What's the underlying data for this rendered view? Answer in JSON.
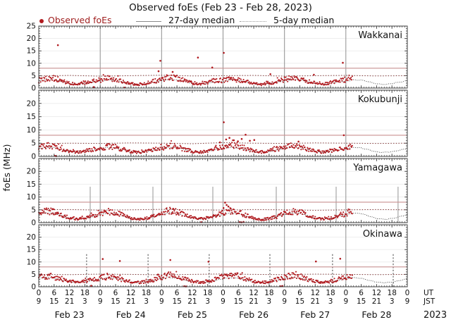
{
  "title": "Observed foEs (Feb 23 - Feb 28, 2023)",
  "legend": {
    "observed": "Observed foEs",
    "median27": "27-day median",
    "median5": "5-day median"
  },
  "colors": {
    "observed": "#b11a1f",
    "observed_text": "#a02020",
    "median27": "#1a1a1a",
    "median5": "#7a2727",
    "threshold": "#c99090",
    "day_grid": "#8f8f8f",
    "faint_grid": "#e9e9e9",
    "frame": "#3c3c3c",
    "tick": "#444444",
    "text": "#111111",
    "vline_solid": "#8a8a8a",
    "vline_dashed": "#333333"
  },
  "axis": {
    "ylabel": "foEs (MHz)",
    "ut_label": "UT",
    "jst_label": "JST",
    "year_label": "2023",
    "ut_ticks": [
      "0",
      "6",
      "12",
      "18"
    ],
    "jst_ticks": [
      "9",
      "15",
      "21",
      "3"
    ],
    "dates": [
      "Feb 23",
      "Feb 24",
      "Feb 25",
      "Feb 26",
      "Feb 27",
      "Feb 28"
    ],
    "ylim": [
      0,
      25
    ],
    "ytick_major_step": 5,
    "ytick_minor_step": 1,
    "xtick_major_hours": 6,
    "xtick_minor_hours": 1,
    "hours_total": 144
  },
  "chart_data": {
    "type": "scatter",
    "title": "Observed foEs (Feb 23 - Feb 28, 2023)",
    "ylabel": "foEs (MHz)",
    "ylim": [
      0,
      25
    ],
    "x_hours_total": 144,
    "x_start_label": "Feb 23, 2023 00:00 UT (09 JST)",
    "threshold_mhz": 8,
    "observed_end_hour": 122.5,
    "baseline_step_hours": 3,
    "median5_step_hours": 12,
    "panels": [
      {
        "name": "Wakkanai",
        "observed_baseline": [
          3.0,
          3.8,
          4.0,
          3.0,
          2.0,
          1.6,
          2.1,
          2.7,
          3.2,
          4.1,
          3.6,
          2.6,
          1.8,
          1.5,
          2.0,
          2.8,
          3.5,
          4.4,
          4.0,
          3.0,
          2.1,
          1.7,
          2.3,
          3.1,
          3.1,
          3.7,
          3.3,
          2.6,
          1.9,
          1.5,
          2.0,
          2.7,
          3.4,
          4.2,
          3.8,
          2.9,
          2.0,
          1.6,
          2.2,
          3.0,
          3.2,
          4.0,
          3.6,
          2.8,
          1.9,
          1.6,
          2.1,
          2.7,
          3.1
        ],
        "median27_baseline": [
          2.9,
          3.4,
          3.3,
          2.6,
          1.8,
          1.5,
          1.8,
          2.4,
          2.8,
          3.3,
          3.2,
          2.5,
          1.7,
          1.4,
          1.8,
          2.4,
          2.9,
          3.5,
          3.3,
          2.6,
          1.8,
          1.5,
          1.9,
          2.5,
          2.8,
          3.4,
          3.2,
          2.5,
          1.7,
          1.4,
          1.8,
          2.4,
          2.9,
          3.4,
          3.3,
          2.6,
          1.8,
          1.5,
          1.9,
          2.5,
          2.8,
          3.3,
          3.2,
          2.5,
          1.7,
          1.5,
          1.8,
          2.4,
          2.9
        ],
        "median5": [
          4.9,
          5.1,
          4.8,
          5.0,
          5.2,
          4.9,
          5.0,
          5.1,
          4.8,
          5.0,
          5.1,
          4.9,
          5.0
        ],
        "spikes": [
          [
            7.5,
            17.3
          ],
          [
            21.5,
            0.4
          ],
          [
            33.5,
            0.2
          ],
          [
            46.8,
            6.8
          ],
          [
            47.5,
            11.0
          ],
          [
            52.3,
            6.5
          ],
          [
            62.2,
            12.3
          ],
          [
            67.8,
            8.3
          ],
          [
            72.3,
            14.2
          ],
          [
            90.5,
            5.6
          ],
          [
            107.5,
            5.4
          ],
          [
            118.8,
            10.2
          ]
        ],
        "vlines": null
      },
      {
        "name": "Kokubunji",
        "observed_baseline": [
          3.3,
          4.2,
          3.8,
          2.8,
          1.9,
          1.6,
          2.0,
          2.6,
          3.0,
          3.9,
          3.5,
          2.6,
          1.8,
          1.5,
          1.9,
          2.5,
          3.2,
          4.0,
          3.6,
          2.7,
          1.9,
          1.6,
          2.0,
          2.7,
          3.5,
          4.4,
          4.0,
          3.0,
          2.0,
          1.7,
          2.2,
          2.9,
          3.3,
          4.1,
          3.7,
          2.8,
          1.9,
          1.6,
          2.0,
          2.6,
          3.1,
          4.0,
          3.6,
          2.7,
          1.8,
          1.5,
          2.0,
          2.6,
          3.2
        ],
        "median27_baseline": [
          3.0,
          3.5,
          3.3,
          2.6,
          1.8,
          1.5,
          1.8,
          2.4,
          2.9,
          3.4,
          3.2,
          2.5,
          1.7,
          1.4,
          1.8,
          2.4,
          3.0,
          3.5,
          3.3,
          2.6,
          1.8,
          1.5,
          1.9,
          2.5,
          2.9,
          3.4,
          3.2,
          2.5,
          1.7,
          1.4,
          1.8,
          2.4,
          3.0,
          3.5,
          3.3,
          2.6,
          1.8,
          1.5,
          1.9,
          2.5,
          2.9,
          3.4,
          3.2,
          2.5,
          1.7,
          1.5,
          1.8,
          2.4,
          3.0
        ],
        "median5": [
          4.8,
          5.0,
          4.9,
          5.1,
          5.0,
          4.8,
          5.2,
          5.0,
          4.9,
          5.1,
          5.0,
          4.9,
          5.0
        ],
        "spikes": [
          [
            6.3,
            0.2
          ],
          [
            6.8,
            0.1
          ],
          [
            70.8,
            5.3
          ],
          [
            72.3,
            12.9
          ],
          [
            73.2,
            6.4
          ],
          [
            74.5,
            7.0
          ],
          [
            76.2,
            6.1
          ],
          [
            77.8,
            5.7
          ],
          [
            79.3,
            6.6
          ],
          [
            80.8,
            8.2
          ],
          [
            82.5,
            5.9
          ],
          [
            84.2,
            6.2
          ],
          [
            101.5,
            5.6
          ],
          [
            119.2,
            8.0
          ]
        ],
        "vlines": null
      },
      {
        "name": "Yamagawa",
        "observed_baseline": [
          3.6,
          4.6,
          4.2,
          3.0,
          1.8,
          1.4,
          1.8,
          2.6,
          3.4,
          4.4,
          4.0,
          2.8,
          1.7,
          1.3,
          1.7,
          2.5,
          3.7,
          4.8,
          4.3,
          3.1,
          1.9,
          1.5,
          1.9,
          2.7,
          3.8,
          4.6,
          4.1,
          2.9,
          1.6,
          1.2,
          1.6,
          2.4,
          3.5,
          4.5,
          4.1,
          2.9,
          1.8,
          1.4,
          1.8,
          2.6,
          3.4,
          4.4,
          4.0,
          2.8,
          1.7,
          1.4,
          1.8,
          2.5,
          3.5
        ],
        "median27_baseline": [
          3.2,
          3.9,
          3.6,
          2.7,
          1.7,
          1.3,
          1.6,
          2.3,
          3.1,
          3.8,
          3.5,
          2.6,
          1.6,
          1.3,
          1.6,
          2.3,
          3.2,
          3.9,
          3.6,
          2.7,
          1.7,
          1.4,
          1.7,
          2.4,
          3.1,
          3.8,
          3.5,
          2.6,
          1.6,
          1.3,
          1.6,
          2.3,
          3.2,
          3.9,
          3.6,
          2.7,
          1.7,
          1.4,
          1.7,
          2.4,
          3.1,
          3.8,
          3.5,
          2.6,
          1.6,
          1.3,
          1.6,
          2.3,
          3.2
        ],
        "median5": [
          5.0,
          5.1,
          4.9,
          5.0,
          5.2,
          5.0,
          4.9,
          5.1,
          5.0,
          4.8,
          5.0,
          5.1,
          5.0
        ],
        "spikes": [
          [
            5.5,
            5.3
          ],
          [
            52.5,
            5.4
          ],
          [
            63.5,
            0.2
          ],
          [
            72.2,
            5.7
          ],
          [
            72.8,
            7.8
          ],
          [
            73.4,
            6.9
          ],
          [
            74.1,
            6.3
          ],
          [
            75.0,
            5.5
          ],
          [
            78.5,
            0.2
          ],
          [
            79.2,
            0.1
          ],
          [
            80.0,
            0.3
          ]
        ],
        "vlines": {
          "hours": [
            20.1,
            44.6,
            68.0,
            92.8,
            116.2,
            140.4
          ],
          "top": 14,
          "style": "solid"
        }
      },
      {
        "name": "Okinawa",
        "observed_baseline": [
          3.8,
          4.4,
          4.0,
          3.0,
          2.2,
          1.8,
          2.2,
          3.0,
          3.5,
          4.2,
          3.8,
          2.8,
          2.0,
          1.7,
          2.1,
          2.8,
          4.0,
          4.6,
          4.2,
          3.1,
          2.2,
          1.8,
          2.2,
          3.0,
          4.2,
          4.8,
          4.4,
          3.2,
          2.1,
          1.7,
          2.1,
          2.9,
          3.9,
          4.5,
          4.1,
          3.0,
          2.1,
          1.8,
          2.2,
          3.0,
          3.6,
          4.3,
          3.9,
          2.9,
          2.0,
          1.7,
          2.1,
          2.8,
          3.7
        ],
        "median27_baseline": [
          3.3,
          3.8,
          3.5,
          2.7,
          2.0,
          1.6,
          1.9,
          2.5,
          3.2,
          3.7,
          3.4,
          2.6,
          1.9,
          1.6,
          1.9,
          2.5,
          3.3,
          3.8,
          3.5,
          2.7,
          2.0,
          1.7,
          2.0,
          2.6,
          3.2,
          3.7,
          3.4,
          2.6,
          1.9,
          1.6,
          1.9,
          2.5,
          3.3,
          3.8,
          3.5,
          2.7,
          2.0,
          1.7,
          2.0,
          2.6,
          3.2,
          3.7,
          3.4,
          2.6,
          1.9,
          1.6,
          1.9,
          2.5,
          3.3
        ],
        "median5": [
          5.0,
          4.9,
          5.1,
          5.0,
          4.8,
          5.0,
          5.2,
          5.0,
          4.9,
          5.1,
          5.0,
          4.9,
          5.0
        ],
        "spikes": [
          [
            20.5,
            0.4
          ],
          [
            25.0,
            11.2
          ],
          [
            31.7,
            10.4
          ],
          [
            46.5,
            4.9
          ],
          [
            51.4,
            10.8
          ],
          [
            56.8,
            0.2
          ],
          [
            57.5,
            0.1
          ],
          [
            66.3,
            10.1
          ],
          [
            94.5,
            0.2
          ],
          [
            95.2,
            0.3
          ],
          [
            108.3,
            10.2
          ],
          [
            117.8,
            11.3
          ]
        ],
        "vlines": {
          "hours": [
            18.7,
            42.7,
            66.6,
            90.3,
            114.8,
            138.5
          ],
          "top": 13.5,
          "style": "dashed"
        }
      }
    ]
  }
}
